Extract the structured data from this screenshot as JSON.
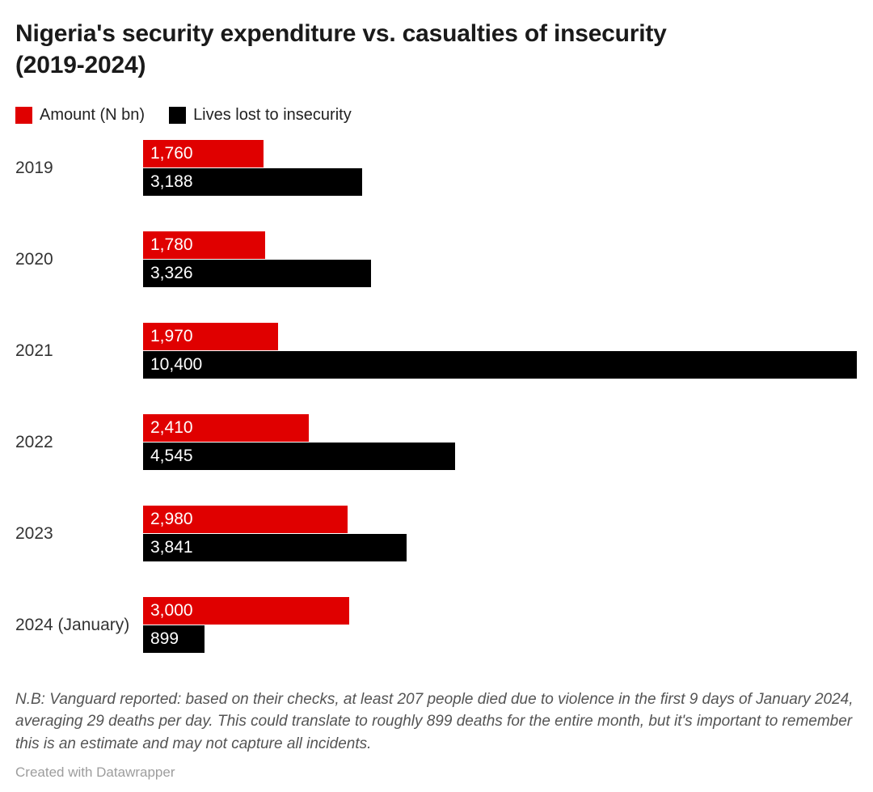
{
  "header": {
    "title_line1": "Nigeria's security expenditure vs. casualties of insecurity",
    "title_line2": "(2019-2024)"
  },
  "legend": {
    "amount_label": "Amount (N bn)",
    "lives_label": "Lives lost to insecurity"
  },
  "colors": {
    "amount": "#e00000",
    "lives": "#000000",
    "value_label": "#ffffff"
  },
  "chart_data": {
    "type": "bar",
    "orientation": "horizontal",
    "title": "Nigeria's security expenditure vs. casualties of insecurity (2019-2024)",
    "categories": [
      "2019",
      "2020",
      "2021",
      "2022",
      "2023",
      "2024 (January)"
    ],
    "series": [
      {
        "name": "Amount (N bn)",
        "color": "#e00000",
        "values": [
          1760,
          1780,
          1970,
          2410,
          2980,
          3000
        ],
        "labels": [
          "1,760",
          "1,780",
          "1,970",
          "2,410",
          "2,980",
          "3,000"
        ]
      },
      {
        "name": "Lives lost to insecurity",
        "color": "#000000",
        "values": [
          3188,
          3326,
          10400,
          4545,
          3841,
          899
        ],
        "labels": [
          "3,188",
          "3,326",
          "10,400",
          "4,545",
          "3,841",
          "899"
        ]
      }
    ],
    "xlabel": "",
    "ylabel": "",
    "xlim": [
      0,
      10400
    ],
    "grid": false,
    "legend_position": "top",
    "value_labels": "inside-start"
  },
  "footer": {
    "note": "N.B: Vanguard reported: based on their checks, at least 207 people died due to violence in the first 9 days of January 2024, averaging 29 deaths per day. This could translate to roughly 899 deaths for the entire month, but it's important to remember this is an estimate and may not capture all incidents.",
    "attribution": "Created with Datawrapper"
  }
}
